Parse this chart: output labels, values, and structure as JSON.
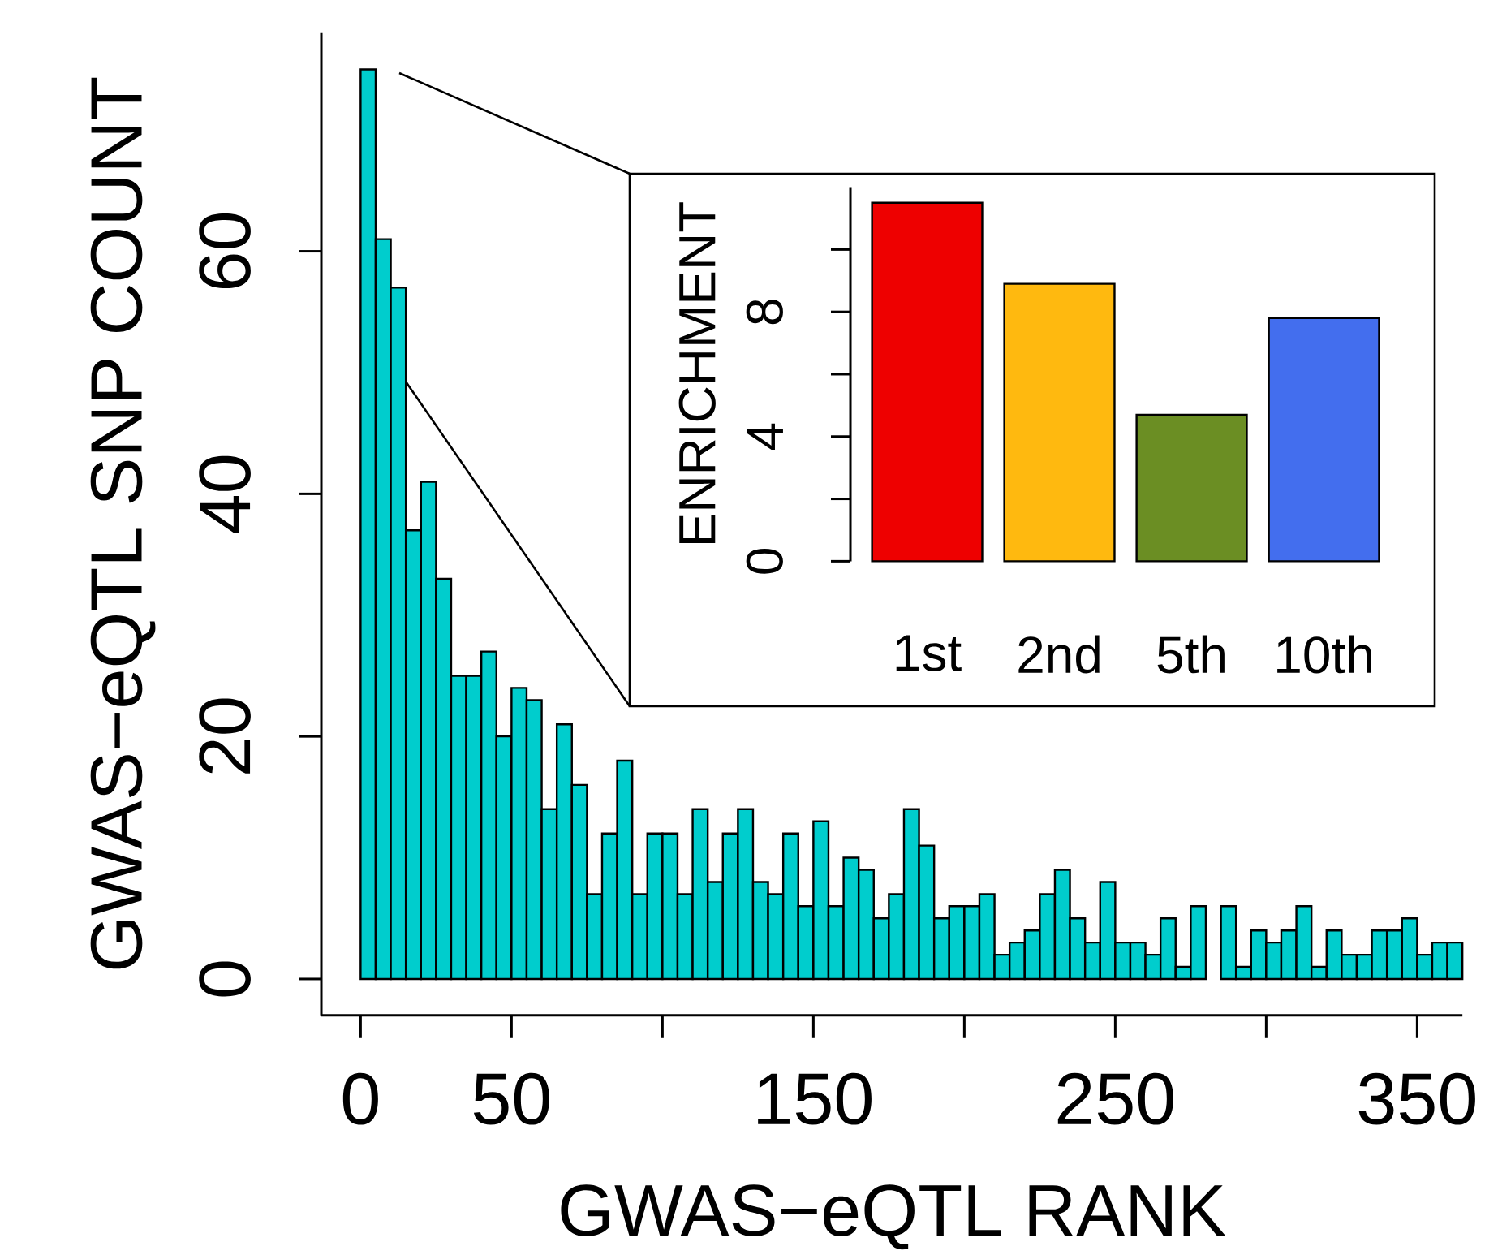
{
  "chart_data": [
    {
      "type": "histogram",
      "xlabel": "GWAS−eQTL RANK",
      "ylabel": "GWAS−eQTL SNP COUNT",
      "color": "#00cdcd",
      "bins": [
        0,
        5,
        10,
        15,
        20,
        25,
        30,
        35,
        40,
        45,
        50,
        55,
        60,
        65,
        70,
        75,
        80,
        85,
        90,
        95,
        100,
        105,
        110,
        115,
        120,
        125,
        130,
        135,
        140,
        145,
        150,
        155,
        160,
        165,
        170,
        175,
        180,
        185,
        190,
        195,
        200,
        205,
        210,
        215,
        220,
        225,
        230,
        235,
        240,
        245,
        250,
        255,
        260,
        265,
        270,
        275,
        280,
        285,
        290,
        295,
        300,
        305,
        310,
        315,
        320,
        325,
        330,
        335,
        340,
        345,
        350,
        355,
        360,
        365
      ],
      "values": [
        75,
        61,
        57,
        37,
        41,
        33,
        25,
        25,
        27,
        20,
        24,
        23,
        14,
        21,
        16,
        7,
        12,
        18,
        7,
        12,
        12,
        7,
        14,
        8,
        12,
        14,
        8,
        7,
        12,
        6,
        13,
        6,
        10,
        9,
        5,
        7,
        14,
        11,
        5,
        6,
        6,
        7,
        2,
        3,
        4,
        7,
        9,
        5,
        3,
        8,
        3,
        3,
        2,
        5,
        1,
        6,
        0,
        6,
        1,
        4,
        3,
        4,
        6,
        1,
        4,
        2,
        2,
        4,
        4,
        5,
        2,
        3,
        3
      ],
      "xlim": [
        -13,
        365
      ],
      "ylim": [
        -3,
        78
      ],
      "xticks": [
        0,
        50,
        {
          "value": 100,
          "label": null
        },
        150,
        {
          "value": 200,
          "label": null
        },
        250,
        {
          "value": 300,
          "label": null
        },
        350
      ],
      "yticks": [
        0,
        20,
        40,
        60
      ]
    },
    {
      "type": "bar",
      "ylabel": "ENRICHMENT",
      "categories": [
        "1st",
        "2nd",
        "5th",
        "10th"
      ],
      "values": [
        11.5,
        8.9,
        4.7,
        7.8
      ],
      "colors": [
        "#ee0000",
        "#ffb90f",
        "#6b8e23",
        "#436eee"
      ],
      "ylim": [
        0,
        12
      ],
      "yticks": [
        0,
        {
          "value": 2,
          "label": null
        },
        4,
        {
          "value": 6,
          "label": null
        },
        8,
        {
          "value": 10,
          "label": null
        }
      ]
    }
  ]
}
